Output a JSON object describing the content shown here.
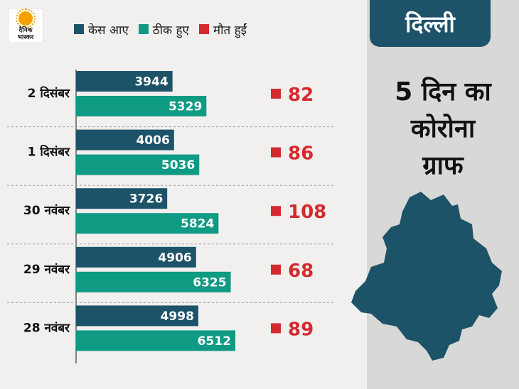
{
  "logo": {
    "line1": "दैनिक",
    "line2": "भास्कर"
  },
  "legend": [
    {
      "label": "केस आए",
      "color": "#1d5369"
    },
    {
      "label": "ठीक हुए",
      "color": "#0f9a83"
    },
    {
      "label": "मौत हुईं",
      "color": "#d42a2f"
    }
  ],
  "panel": {
    "city": "दिल्ली",
    "title_lines": [
      "5 दिन का",
      "कोरोना",
      "ग्राफ"
    ]
  },
  "chart_data": {
    "type": "bar",
    "orientation": "horizontal",
    "categories": [
      "2 दिसंबर",
      "1 दिसंबर",
      "30 नवंबर",
      "29 नवंबर",
      "28 नवंबर"
    ],
    "series": [
      {
        "name": "केस आए",
        "color": "#1d5369",
        "values": [
          3944,
          4006,
          3726,
          4906,
          4998
        ]
      },
      {
        "name": "ठीक हुए",
        "color": "#0f9a83",
        "values": [
          5329,
          5036,
          5824,
          6325,
          6512
        ]
      },
      {
        "name": "मौत हुईं",
        "color": "#d42a2f",
        "values": [
          82,
          86,
          108,
          68,
          89
        ]
      }
    ],
    "xlim": [
      0,
      10000
    ],
    "legend_position": "top"
  }
}
